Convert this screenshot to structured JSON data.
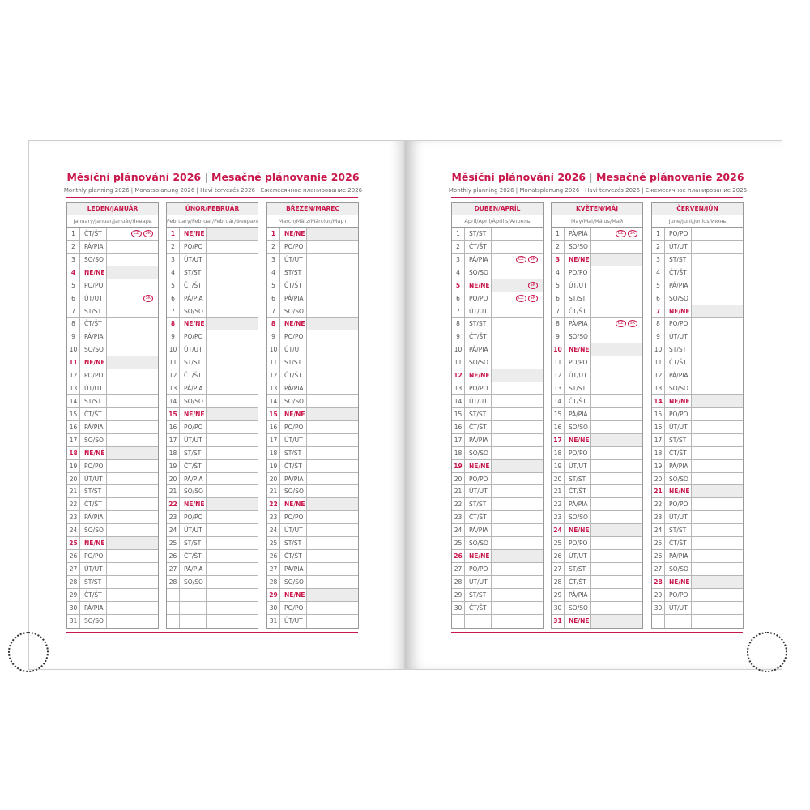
{
  "title": {
    "cz": "Měsíční plánování 2026",
    "sep": "|",
    "sk": "Mesačné plánovanie 2026"
  },
  "subtitle": "Monthly planning 2026 | Monatsplanung 2026 | Havi tervezés 2026 | Ежемесячное планирование 2026",
  "colors": {
    "accent": "#c8174a",
    "sunday_shade": "#ececec"
  },
  "months": [
    {
      "name": "LEDEN/JANUÁR",
      "sub": "January/Januar/Január/Январь",
      "start": "ČT/ŠT",
      "days": 31,
      "marks": {
        "1": [
          "CZ",
          "SK"
        ],
        "6": [
          "SK"
        ]
      }
    },
    {
      "name": "ÚNOR/FEBRUÁR",
      "sub": "February/Februar/Február/Февраль",
      "start": "NE/NE",
      "days": 28,
      "marks": {}
    },
    {
      "name": "BŘEZEN/MAREC",
      "sub": "March/März/Március/Март",
      "start": "NE/NE",
      "days": 31,
      "marks": {}
    },
    {
      "name": "DUBEN/APRÍL",
      "sub": "April/April/Április/Апрель",
      "start": "ST/ST",
      "days": 30,
      "marks": {
        "3": [
          "CZ",
          "SK"
        ],
        "5": [
          "SK"
        ],
        "6": [
          "CZ",
          "SK"
        ]
      }
    },
    {
      "name": "KVĚTEN/MÁJ",
      "sub": "May/Mai/Május/Май",
      "start": "PÁ/PIA",
      "days": 31,
      "marks": {
        "1": [
          "CZ",
          "SK"
        ],
        "8": [
          "CZ",
          "SK"
        ]
      }
    },
    {
      "name": "ČERVEN/JÚN",
      "sub": "June/Juni/Június/Июнь",
      "start": "PO/PO",
      "days": 30,
      "marks": {}
    }
  ],
  "weekdays": [
    "PO/PO",
    "ÚT/UT",
    "ST/ST",
    "ČT/ŠT",
    "PÁ/PIA",
    "SO/SO",
    "NE/NE"
  ]
}
